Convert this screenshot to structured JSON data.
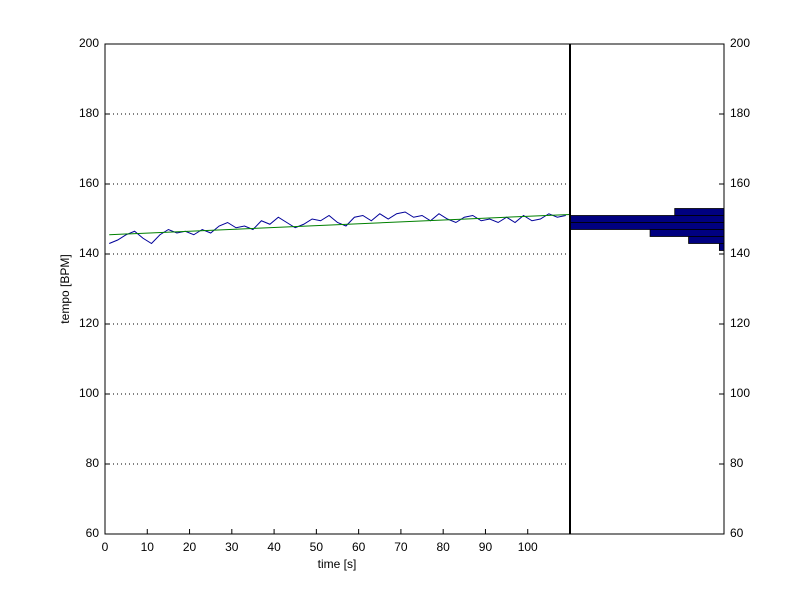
{
  "chart_data": [
    {
      "type": "line",
      "xlabel": "time [s]",
      "ylabel": "tempo [BPM]",
      "xlim": [
        0,
        110
      ],
      "ylim": [
        60,
        200
      ],
      "xticks": [
        0,
        10,
        20,
        30,
        40,
        50,
        60,
        70,
        80,
        90,
        100
      ],
      "yticks": [
        60,
        80,
        100,
        120,
        140,
        160,
        180,
        200
      ],
      "grid": true,
      "series": [
        {
          "color": "#000099",
          "x": [
            1,
            3,
            5,
            7,
            9,
            11,
            13,
            15,
            17,
            19,
            21,
            23,
            25,
            27,
            29,
            31,
            33,
            35,
            37,
            39,
            41,
            43,
            45,
            47,
            49,
            51,
            53,
            55,
            57,
            59,
            61,
            63,
            65,
            67,
            69,
            71,
            73,
            75,
            77,
            79,
            81,
            83,
            85,
            87,
            89,
            91,
            93,
            95,
            97,
            99,
            101,
            103,
            105,
            107,
            109
          ],
          "values": [
            143.0,
            144.0,
            145.5,
            146.5,
            144.5,
            143.0,
            145.5,
            147.0,
            146.0,
            146.5,
            145.5,
            147.0,
            146.0,
            148.0,
            149.0,
            147.5,
            148.0,
            147.0,
            149.5,
            148.5,
            150.5,
            149.0,
            147.5,
            148.5,
            150.0,
            149.5,
            151.0,
            149.0,
            148.0,
            150.5,
            151.0,
            149.5,
            151.5,
            150.0,
            151.5,
            152.0,
            150.5,
            151.0,
            149.5,
            151.5,
            150.0,
            149.0,
            150.5,
            151.0,
            149.5,
            150.0,
            149.0,
            150.5,
            149.0,
            151.0,
            149.5,
            150.0,
            151.5,
            150.5,
            151.0
          ]
        },
        {
          "color": "#008000",
          "x": [
            1,
            110
          ],
          "values": [
            145.5,
            151.3
          ]
        }
      ]
    },
    {
      "type": "histogram",
      "orientation": "horizontal",
      "x_reversed": true,
      "color": "#000080",
      "bins": [
        141,
        143,
        145,
        147,
        149,
        151,
        153
      ],
      "values": [
        3,
        23,
        48,
        100,
        100,
        32
      ],
      "xlim": [
        0,
        100
      ],
      "ylim": [
        60,
        200
      ],
      "yticks": [
        60,
        80,
        100,
        120,
        140,
        160,
        180,
        200
      ]
    }
  ]
}
